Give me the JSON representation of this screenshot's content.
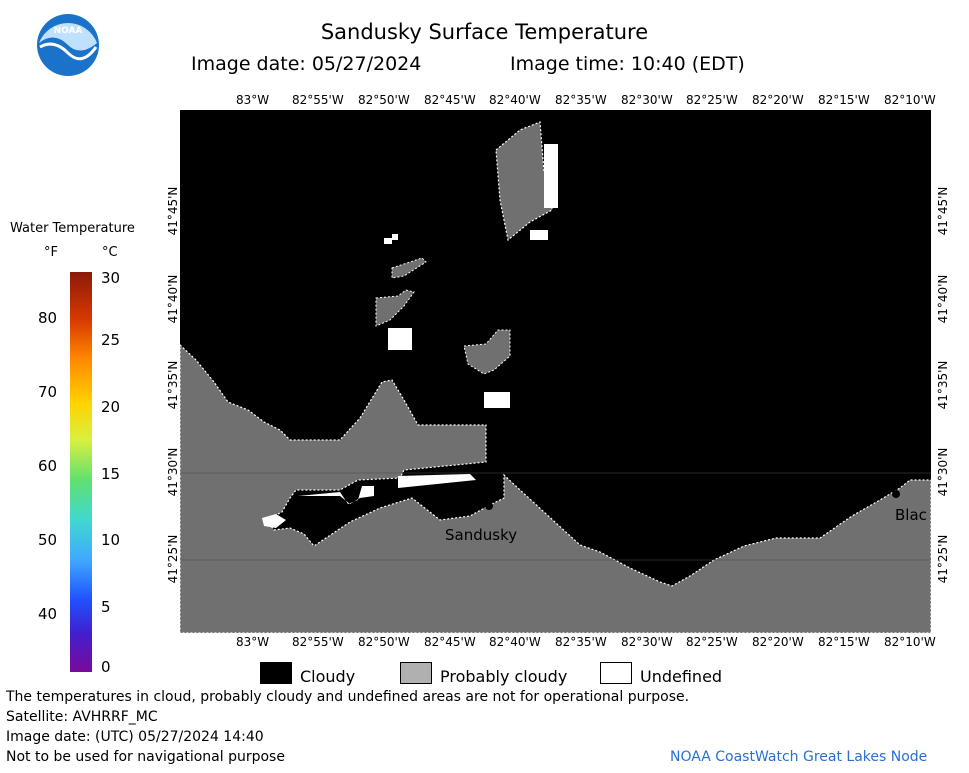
{
  "header": {
    "title": "Sandusky Surface Temperature",
    "image_date_label": "Image date: 05/27/2024",
    "image_time_label": "Image time: 10:40 (EDT)"
  },
  "logo": {
    "text": "NOAA",
    "color": "#1a73c8"
  },
  "colorbar": {
    "title": "Water Temperature",
    "unit_f": "°F",
    "unit_c": "°C",
    "f_ticks": [
      "80",
      "70",
      "60",
      "50",
      "40"
    ],
    "c_ticks": [
      "30",
      "25",
      "20",
      "15",
      "10",
      "5",
      "0"
    ]
  },
  "map": {
    "lon_labels": [
      "83°W",
      "82°55'W",
      "82°50'W",
      "82°45'W",
      "82°40'W",
      "82°35'W",
      "82°30'W",
      "82°25'W",
      "82°20'W",
      "82°15'W",
      "82°10'W"
    ],
    "lat_labels": [
      "41°45'N",
      "41°40'N",
      "41°35'N",
      "41°30'N",
      "41°25'N"
    ],
    "places": [
      "Sandusky",
      "Blac"
    ],
    "colors": {
      "cloudy": "#000000",
      "probably_cloudy": "#707070",
      "undefined": "#ffffff"
    }
  },
  "legend": {
    "cloudy": "Cloudy",
    "probably_cloudy": "Probably cloudy",
    "undefined": "Undefined"
  },
  "footer": {
    "disclaimer": "The temperatures in cloud, probably cloudy and undefined areas are not for operational purpose.",
    "satellite": "Satellite: AVHRRF_MC",
    "utc_date": "Image date: (UTC) 05/27/2024  14:40",
    "nav_warning": "Not to be used for navigational purpose",
    "credit": "NOAA CoastWatch Great Lakes Node"
  }
}
